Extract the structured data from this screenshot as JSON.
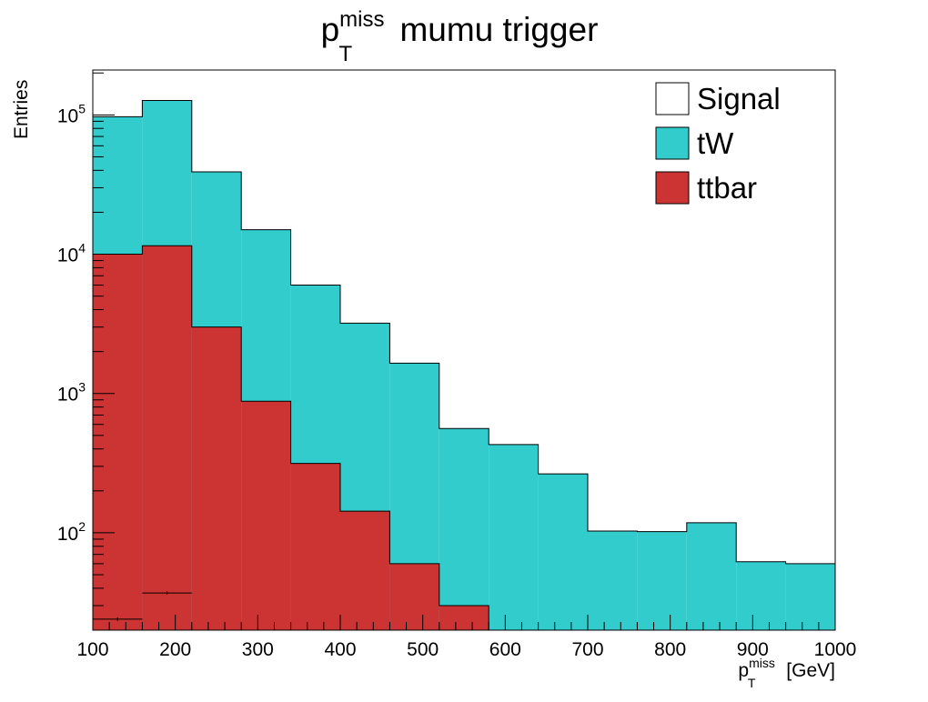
{
  "chart_data": {
    "type": "bar",
    "stacked": true,
    "title": {
      "main": "p",
      "sup": "miss",
      "sub": "T",
      "rest": "mumu trigger"
    },
    "xlabel": {
      "main": "p",
      "sup": "miss",
      "sub": "T",
      "rest": "[GeV]"
    },
    "ylabel": "Entries",
    "xlim": [
      100,
      1000
    ],
    "ylim": [
      20,
      210000
    ],
    "y_log_scale": true,
    "x_ticks": [
      "100",
      "200",
      "300",
      "400",
      "500",
      "600",
      "700",
      "800",
      "900",
      "1000"
    ],
    "y_ticks": [
      {
        "value": 100,
        "base": "10",
        "exp": "2"
      },
      {
        "value": 1000,
        "base": "10",
        "exp": "3"
      },
      {
        "value": 10000,
        "base": "10",
        "exp": "4"
      },
      {
        "value": 100000,
        "base": "10",
        "exp": "5"
      }
    ],
    "bin_edges": [
      100,
      160,
      220,
      280,
      340,
      400,
      460,
      520,
      580,
      640,
      700,
      760,
      820,
      880,
      940,
      1000
    ],
    "series": [
      {
        "name": "ttbar",
        "color": "#cc3333",
        "values": [
          10000,
          11500,
          3000,
          880,
          315,
          143,
          60,
          30,
          0,
          0,
          0,
          0,
          0,
          0,
          0
        ]
      },
      {
        "name": "tW",
        "color": "#33cccc",
        "values": [
          87000,
          115500,
          36000,
          14120,
          5685,
          3057,
          1590,
          530,
          430,
          265,
          103,
          102,
          118,
          62,
          60
        ]
      }
    ],
    "signal": {
      "name": "Signal",
      "color": "#ffffff",
      "points": [
        {
          "x": 130,
          "xerr": 30,
          "y": 24
        },
        {
          "x": 190,
          "xerr": 30,
          "y": 37
        }
      ]
    },
    "grid": false,
    "legend_position": "top-right",
    "legend": [
      "Signal",
      "tW",
      "ttbar"
    ]
  }
}
